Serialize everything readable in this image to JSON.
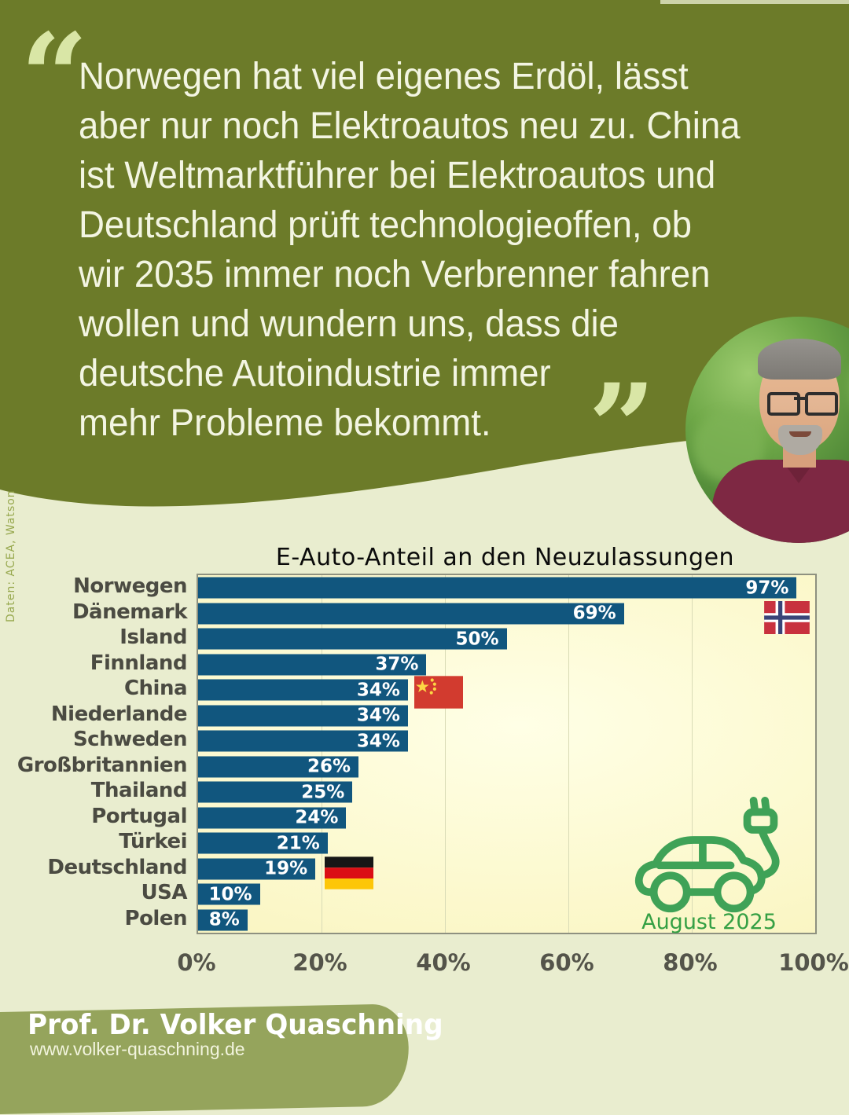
{
  "quote": {
    "open_mark": "“",
    "close_mark": "”",
    "lines": [
      "Norwegen hat viel eigenes Erdöl, lässt",
      "aber nur noch Elektroautos neu zu. China",
      "ist Weltmarktführer bei Elektroautos und",
      "Deutschland prüft technologieoffen, ob",
      "wir 2035 immer noch Verbrenner fahren",
      "wollen und wundern uns, dass die",
      "deutsche Autoindustrie immer",
      "mehr Probleme bekommt."
    ]
  },
  "source_note": "Daten: ACEA, Watson",
  "chart_data": {
    "type": "bar",
    "orientation": "horizontal",
    "title": "E-Auto-Anteil an den Neuzulassungen",
    "categories": [
      "Norwegen",
      "Dänemark",
      "Island",
      "Finnland",
      "China",
      "Niederlande",
      "Schweden",
      "Großbritannien",
      "Thailand",
      "Portugal",
      "Türkei",
      "Deutschland",
      "USA",
      "Polen"
    ],
    "values": [
      97,
      69,
      50,
      37,
      34,
      34,
      34,
      26,
      25,
      24,
      21,
      19,
      10,
      8
    ],
    "value_labels": [
      "97%",
      "69%",
      "50%",
      "37%",
      "34%",
      "34%",
      "34%",
      "26%",
      "25%",
      "24%",
      "21%",
      "19%",
      "10%",
      "8%"
    ],
    "x_ticks": [
      "0%",
      "20%",
      "40%",
      "60%",
      "80%",
      "100%"
    ],
    "xlim": [
      0,
      100
    ],
    "grid": "vertical",
    "annotation": "August 2025",
    "flags": [
      {
        "country": "Norwegen",
        "type": "norway"
      },
      {
        "country": "China",
        "type": "china"
      },
      {
        "country": "Deutschland",
        "type": "germany"
      }
    ]
  },
  "footer": {
    "name": "Prof. Dr. Volker Quaschning",
    "website": "www.volker-quaschning.de"
  },
  "colors": {
    "quote_bg": "#6C7B29",
    "quote_text": "#F3F5E2",
    "quote_marks": "#D9E6A6",
    "page_bg": "#E9EDCF",
    "plot_bg": "#FBF7C8",
    "bar": "#11567E",
    "bar_value_text": "#FFFFFF",
    "category_text": "#4B4B42",
    "axis_text": "#54544A",
    "ev_green": "#3FA257",
    "footer_bg": "#95A45C",
    "norway_flag": [
      "#C8313E",
      "#FFFFFF",
      "#3A4478"
    ],
    "china_flag": [
      "#D23B2F",
      "#FCD744"
    ],
    "germany_flag": [
      "#161616",
      "#DB0E15",
      "#FDC608"
    ]
  }
}
